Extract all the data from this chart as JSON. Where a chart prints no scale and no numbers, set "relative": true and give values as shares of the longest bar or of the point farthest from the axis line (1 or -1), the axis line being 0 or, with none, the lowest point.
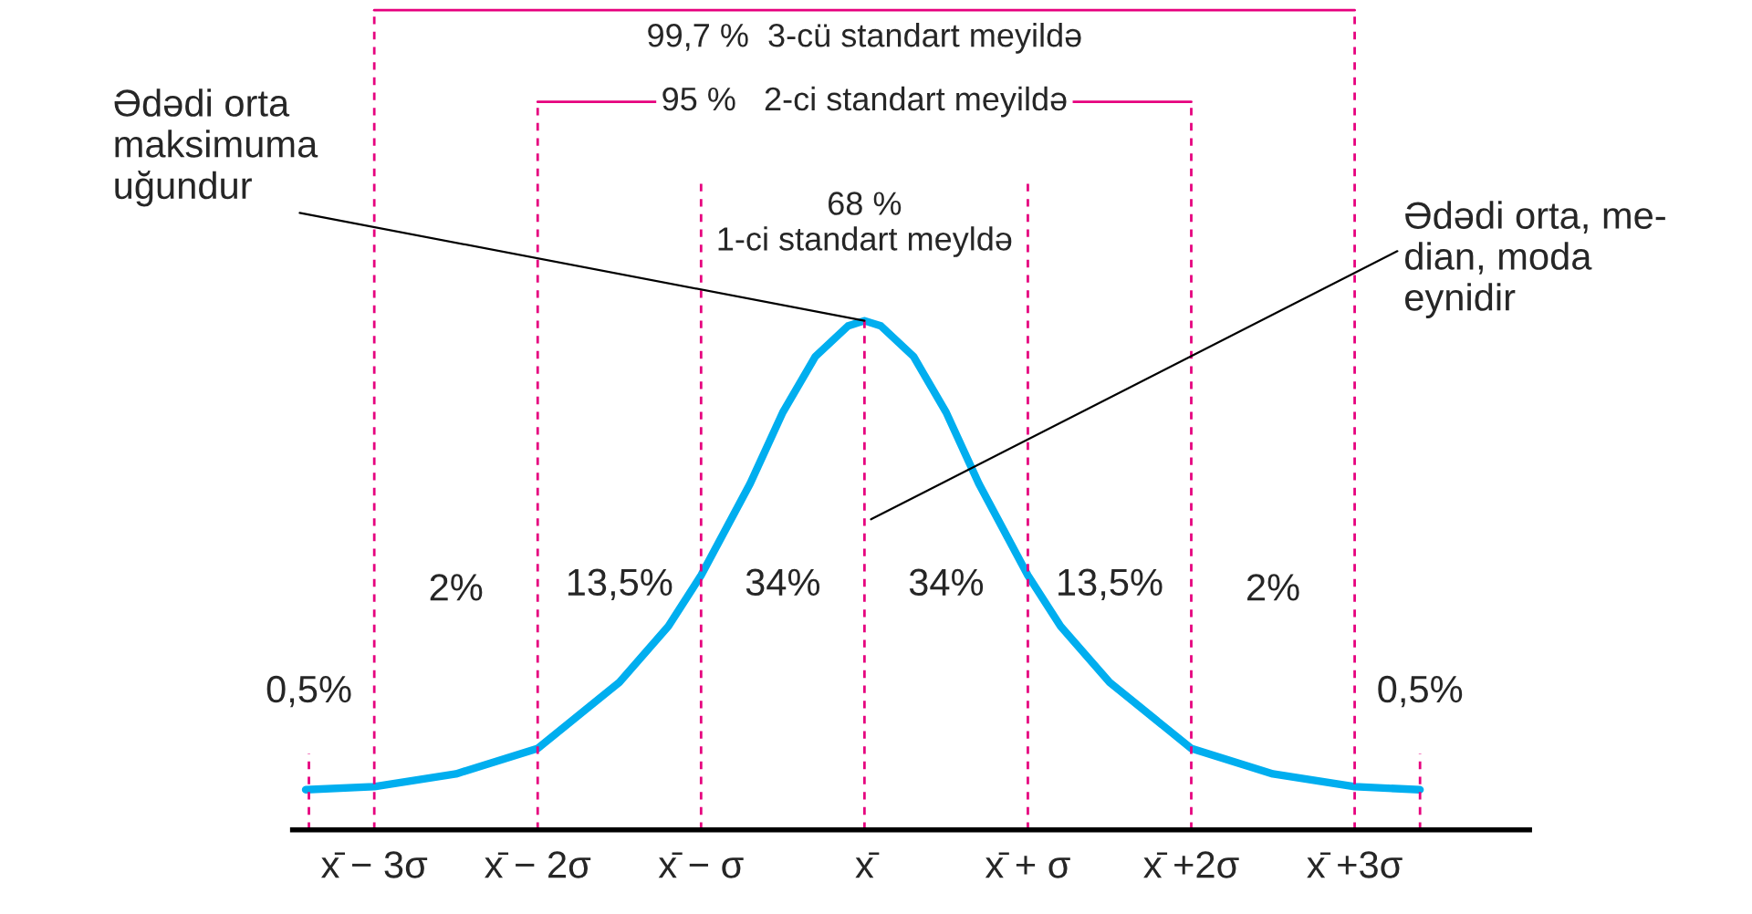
{
  "chart_data": {
    "type": "line",
    "relative": true,
    "series": [
      {
        "color": "#00aeef",
        "x": [
          -3.42,
          -3,
          -2.5,
          -2,
          -1.5,
          -1.2,
          -1,
          -0.7,
          -0.5,
          -0.3,
          -0.1,
          0,
          0.1,
          0.3,
          0.5,
          0.7,
          1,
          1.2,
          1.5,
          2,
          2.5,
          3,
          3.4
        ],
        "values": [
          0.079,
          0.085,
          0.11,
          0.16,
          0.29,
          0.4,
          0.5,
          0.68,
          0.82,
          0.93,
          0.99,
          1,
          0.99,
          0.93,
          0.82,
          0.68,
          0.5,
          0.4,
          0.29,
          0.16,
          0.11,
          0.085,
          0.079
        ]
      }
    ],
    "xlim": [
      -3.5,
      4.07
    ],
    "xticks": [
      {
        "value": -3,
        "label": "x̄ − 3σ"
      },
      {
        "value": -2,
        "label": "x̄ − 2σ"
      },
      {
        "value": -1,
        "label": "x̄ − σ"
      },
      {
        "value": 0,
        "label": "x̄"
      },
      {
        "value": 1,
        "label": "x̄ + σ"
      },
      {
        "value": 2,
        "label": "x̄ +2σ"
      },
      {
        "value": 3,
        "label": "x̄ +3σ"
      }
    ],
    "ref_lines": [
      {
        "axis": "x",
        "value": -3.4,
        "color": "#e6007e",
        "line_style": "dashed"
      },
      {
        "axis": "x",
        "value": -3,
        "color": "#e6007e",
        "line_style": "dashed"
      },
      {
        "axis": "x",
        "value": -2,
        "color": "#e6007e",
        "line_style": "dashed"
      },
      {
        "axis": "x",
        "value": -1,
        "color": "#e6007e",
        "line_style": "dashed"
      },
      {
        "axis": "x",
        "value": 0,
        "color": "#e6007e",
        "line_style": "dashed"
      },
      {
        "axis": "x",
        "value": 1,
        "color": "#e6007e",
        "line_style": "dashed"
      },
      {
        "axis": "x",
        "value": 2,
        "color": "#e6007e",
        "line_style": "dashed"
      },
      {
        "axis": "x",
        "value": 3,
        "color": "#e6007e",
        "line_style": "dashed"
      },
      {
        "axis": "x",
        "value": 3.4,
        "color": "#e6007e",
        "line_style": "dashed"
      }
    ],
    "annotations": [
      "99,7 %  3-cü standart meyildə",
      "95 %   2-ci standart meyildə",
      "68 %\n1-ci standart meyldə",
      {
        "text": "Ədədi orta\nmaksimuma\nuğundur",
        "x": 0,
        "y": 1
      },
      "Ədədi orta, me-\ndian, moda\neynidir",
      "0,5%",
      "2%",
      "13,5%",
      "34%",
      "34%",
      "13,5%",
      "2%",
      "0,5%"
    ]
  }
}
